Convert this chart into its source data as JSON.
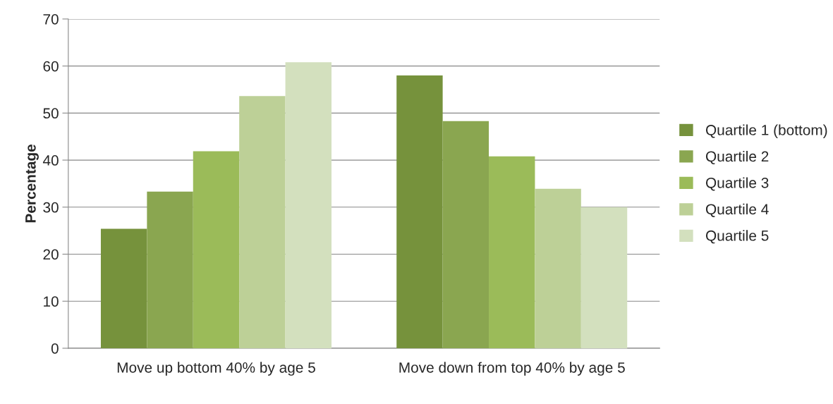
{
  "chart_data": {
    "type": "bar",
    "ylabel": "Percentage",
    "categories": [
      "Move up bottom 40% by age 5",
      "Move down from top 40% by age 5"
    ],
    "series": [
      {
        "name": "Quartile 1 (bottom)",
        "color": "#76923c",
        "values": [
          25.4,
          58.0
        ]
      },
      {
        "name": "Quartile 2",
        "color": "#8aa650",
        "values": [
          33.3,
          48.3
        ]
      },
      {
        "name": "Quartile 3",
        "color": "#9bbb59",
        "values": [
          41.9,
          40.8
        ]
      },
      {
        "name": "Quartile 4",
        "color": "#bdd097",
        "values": [
          53.6,
          33.9
        ]
      },
      {
        "name": "Quartile 5",
        "color": "#d3e0be",
        "values": [
          60.8,
          30.0
        ]
      }
    ],
    "ylim": [
      0,
      70
    ],
    "yticks": [
      0,
      10,
      20,
      30,
      40,
      50,
      60,
      70
    ],
    "grid": "y",
    "legend": "right"
  }
}
